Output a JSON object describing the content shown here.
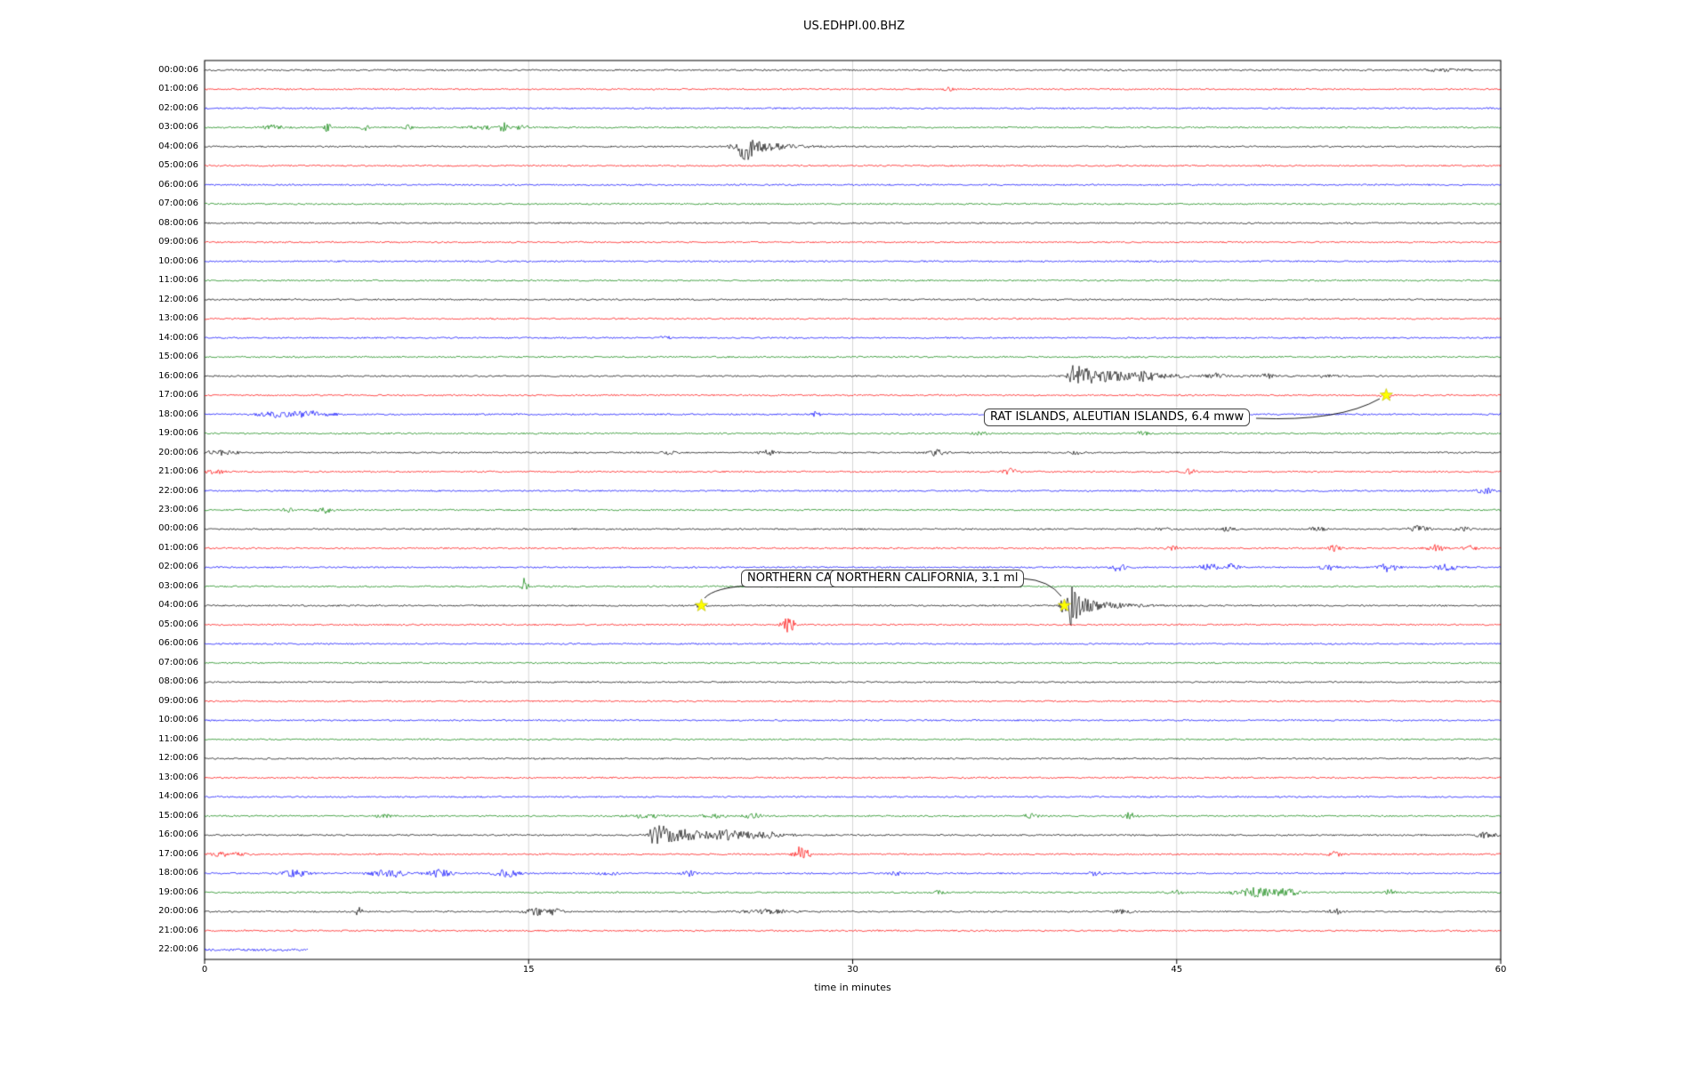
{
  "title": "US.EDHPI.00.BHZ",
  "chart_data": {
    "type": "line",
    "subtype": "seismogram-dayplot",
    "title": "US.EDHPI.00.BHZ",
    "xlabel": "time in minutes",
    "xlim": [
      0,
      60
    ],
    "xticks": [
      "0",
      "15",
      "30",
      "45",
      "60"
    ],
    "xtick_values": [
      0,
      15,
      30,
      45,
      60
    ],
    "grid": true,
    "minutes_per_row": 60,
    "trace_color_cycle": [
      "#000000",
      "#ff0000",
      "#0000ff",
      "#008000"
    ],
    "event_marker_color": "#ffff00",
    "rows": [
      {
        "label": "00:00:06",
        "color": "#000000",
        "events": [
          {
            "m": 57.5,
            "a": 1.2,
            "w": 1
          }
        ]
      },
      {
        "label": "01:00:06",
        "color": "#ff0000",
        "events": [
          {
            "m": 34.5,
            "a": 2,
            "w": 0.25
          }
        ]
      },
      {
        "label": "02:00:06",
        "color": "#0000ff",
        "events": []
      },
      {
        "label": "03:00:06",
        "color": "#008000",
        "events": [
          {
            "m": 3.2,
            "a": 2.5,
            "w": 0.5
          },
          {
            "m": 5.7,
            "a": 5,
            "w": 0.15
          },
          {
            "m": 7.4,
            "a": 4,
            "w": 0.15
          },
          {
            "m": 9.4,
            "a": 2.5,
            "w": 0.2
          },
          {
            "m": 12.8,
            "a": 2,
            "w": 0.6
          },
          {
            "m": 13.8,
            "a": 6,
            "w": 0.2
          },
          {
            "m": 14.7,
            "a": 3,
            "w": 0.3
          }
        ]
      },
      {
        "label": "04:00:06",
        "color": "#000000",
        "events": [
          {
            "m": 24.4,
            "a": 3,
            "w": 0.15
          },
          {
            "m": 24.9,
            "a": 14,
            "w": 0.2,
            "c": 1
          },
          {
            "m": 25.2,
            "a": 6,
            "w": 0.2
          }
        ]
      },
      {
        "label": "05:00:06",
        "color": "#ff0000",
        "events": []
      },
      {
        "label": "06:00:06",
        "color": "#0000ff",
        "events": []
      },
      {
        "label": "07:00:06",
        "color": "#008000",
        "events": []
      },
      {
        "label": "08:00:06",
        "color": "#000000",
        "events": []
      },
      {
        "label": "09:00:06",
        "color": "#ff0000",
        "events": []
      },
      {
        "label": "10:00:06",
        "color": "#0000ff",
        "events": []
      },
      {
        "label": "11:00:06",
        "color": "#008000",
        "events": []
      },
      {
        "label": "12:00:06",
        "color": "#000000",
        "events": []
      },
      {
        "label": "13:00:06",
        "color": "#ff0000",
        "events": []
      },
      {
        "label": "14:00:06",
        "color": "#0000ff",
        "events": [
          {
            "m": 21.3,
            "a": 2.5,
            "w": 0.2
          }
        ]
      },
      {
        "label": "15:00:06",
        "color": "#008000",
        "events": []
      },
      {
        "label": "16:00:06",
        "color": "#000000",
        "events": [
          {
            "m": 40.2,
            "a": 12,
            "w": 0.2,
            "c": 2.2
          },
          {
            "m": 43.5,
            "a": 3,
            "w": 0.5
          },
          {
            "m": 46.8,
            "a": 2.5,
            "w": 0.4
          },
          {
            "m": 49.2,
            "a": 2,
            "w": 0.3
          },
          {
            "m": 52,
            "a": 1.5,
            "w": 0.5
          }
        ]
      },
      {
        "label": "17:00:06",
        "color": "#ff0000",
        "events": [
          {
            "m": 54.7,
            "a": 2.5,
            "w": 0.3
          }
        ]
      },
      {
        "label": "18:00:06",
        "color": "#0000ff",
        "events": [
          {
            "m": 3.3,
            "a": 3,
            "w": 0.8
          },
          {
            "m": 5,
            "a": 3.5,
            "w": 0.9
          },
          {
            "m": 28.3,
            "a": 3,
            "w": 0.25
          },
          {
            "m": 47.6,
            "a": 2,
            "w": 0.3
          }
        ]
      },
      {
        "label": "19:00:06",
        "color": "#008000",
        "events": [
          {
            "m": 35.9,
            "a": 2.5,
            "w": 0.3
          },
          {
            "m": 43.4,
            "a": 2,
            "w": 0.3
          }
        ]
      },
      {
        "label": "20:00:06",
        "color": "#000000",
        "events": [
          {
            "m": 0.8,
            "a": 2.5,
            "w": 0.7
          },
          {
            "m": 21.5,
            "a": 2,
            "w": 0.3
          },
          {
            "m": 26.1,
            "a": 2.5,
            "w": 0.4
          },
          {
            "m": 33.9,
            "a": 3.5,
            "w": 0.4
          },
          {
            "m": 40.3,
            "a": 2,
            "w": 0.3
          }
        ]
      },
      {
        "label": "21:00:06",
        "color": "#ff0000",
        "events": [
          {
            "m": 0.5,
            "a": 2,
            "w": 0.5
          },
          {
            "m": 37.3,
            "a": 3.5,
            "w": 0.35
          },
          {
            "m": 45.6,
            "a": 2.5,
            "w": 0.3
          }
        ]
      },
      {
        "label": "22:00:06",
        "color": "#0000ff",
        "events": [
          {
            "m": 59.3,
            "a": 3.5,
            "w": 0.4
          }
        ]
      },
      {
        "label": "23:00:06",
        "color": "#008000",
        "events": [
          {
            "m": 3.8,
            "a": 3,
            "w": 0.3
          },
          {
            "m": 5.6,
            "a": 3.5,
            "w": 0.35
          }
        ]
      },
      {
        "label": "00:00:06",
        "color": "#000000",
        "events": [
          {
            "m": 44.5,
            "a": 1.5,
            "w": 0.4
          },
          {
            "m": 47.3,
            "a": 2,
            "w": 0.4
          },
          {
            "m": 51.5,
            "a": 2,
            "w": 0.4
          },
          {
            "m": 56.2,
            "a": 3,
            "w": 0.5
          },
          {
            "m": 58.3,
            "a": 2,
            "w": 0.4
          }
        ]
      },
      {
        "label": "01:00:06",
        "color": "#ff0000",
        "events": [
          {
            "m": 44.8,
            "a": 2,
            "w": 0.3
          },
          {
            "m": 52.3,
            "a": 3,
            "w": 0.3
          },
          {
            "m": 57,
            "a": 3.5,
            "w": 0.4
          },
          {
            "m": 58.6,
            "a": 2.5,
            "w": 0.3
          }
        ]
      },
      {
        "label": "02:00:06",
        "color": "#0000ff",
        "events": [
          {
            "m": 42.3,
            "a": 5,
            "w": 0.3
          },
          {
            "m": 46.5,
            "a": 4,
            "w": 0.4
          },
          {
            "m": 47.6,
            "a": 4,
            "w": 0.3
          },
          {
            "m": 52,
            "a": 3,
            "w": 0.4
          },
          {
            "m": 54.8,
            "a": 5,
            "w": 0.4
          },
          {
            "m": 57.5,
            "a": 4,
            "w": 0.5
          }
        ]
      },
      {
        "label": "03:00:06",
        "color": "#008000",
        "events": [
          {
            "m": 14.8,
            "a": 9,
            "w": 0.15
          }
        ]
      },
      {
        "label": "04:00:06",
        "color": "#000000",
        "events": [
          {
            "m": 23,
            "a": 2,
            "w": 0.3
          },
          {
            "m": 39.85,
            "a": 17,
            "w": 0.2,
            "c": 1.2
          },
          {
            "m": 40.15,
            "a": 8,
            "w": 0.2
          }
        ]
      },
      {
        "label": "05:00:06",
        "color": "#ff0000",
        "events": [
          {
            "m": 26.9,
            "a": 10,
            "w": 0.2
          },
          {
            "m": 27.2,
            "a": 6,
            "w": 0.15
          }
        ]
      },
      {
        "label": "06:00:06",
        "color": "#0000ff",
        "events": []
      },
      {
        "label": "07:00:06",
        "color": "#008000",
        "events": []
      },
      {
        "label": "08:00:06",
        "color": "#000000",
        "events": []
      },
      {
        "label": "09:00:06",
        "color": "#ff0000",
        "events": []
      },
      {
        "label": "10:00:06",
        "color": "#0000ff",
        "events": []
      },
      {
        "label": "11:00:06",
        "color": "#008000",
        "events": []
      },
      {
        "label": "12:00:06",
        "color": "#000000",
        "events": []
      },
      {
        "label": "13:00:06",
        "color": "#ff0000",
        "events": []
      },
      {
        "label": "14:00:06",
        "color": "#0000ff",
        "events": []
      },
      {
        "label": "15:00:06",
        "color": "#008000",
        "events": [
          {
            "m": 8.2,
            "a": 2,
            "w": 0.4
          },
          {
            "m": 20.5,
            "a": 2,
            "w": 0.8
          },
          {
            "m": 23.6,
            "a": 2.5,
            "w": 0.5
          },
          {
            "m": 25.4,
            "a": 2.5,
            "w": 0.4
          },
          {
            "m": 38.3,
            "a": 3,
            "w": 0.3
          },
          {
            "m": 42.8,
            "a": 3.5,
            "w": 0.3
          }
        ]
      },
      {
        "label": "16:00:06",
        "color": "#000000",
        "events": [
          {
            "m": 20.8,
            "a": 12,
            "w": 0.2,
            "c": 2
          },
          {
            "m": 24.2,
            "a": 3,
            "w": 0.6
          },
          {
            "m": 25.8,
            "a": 3,
            "w": 0.8
          },
          {
            "m": 59.3,
            "a": 3,
            "w": 0.5
          }
        ]
      },
      {
        "label": "17:00:06",
        "color": "#ff0000",
        "events": [
          {
            "m": 1,
            "a": 2,
            "w": 0.8
          },
          {
            "m": 27.5,
            "a": 8,
            "w": 0.25
          },
          {
            "m": 27.9,
            "a": 5,
            "w": 0.2
          },
          {
            "m": 52.3,
            "a": 3,
            "w": 0.3
          }
        ]
      },
      {
        "label": "18:00:06",
        "color": "#0000ff",
        "events": [
          {
            "m": 4.2,
            "a": 3.5,
            "w": 0.6
          },
          {
            "m": 8.5,
            "a": 4.5,
            "w": 0.8
          },
          {
            "m": 10.9,
            "a": 4,
            "w": 0.6
          },
          {
            "m": 14,
            "a": 4.5,
            "w": 0.5
          },
          {
            "m": 18.7,
            "a": 2.5,
            "w": 0.4
          },
          {
            "m": 22.4,
            "a": 3,
            "w": 0.3
          },
          {
            "m": 32,
            "a": 2,
            "w": 0.3
          },
          {
            "m": 41.2,
            "a": 2.5,
            "w": 0.3
          }
        ]
      },
      {
        "label": "19:00:06",
        "color": "#008000",
        "events": [
          {
            "m": 33.9,
            "a": 2,
            "w": 0.3
          },
          {
            "m": 44.9,
            "a": 3,
            "w": 0.3
          },
          {
            "m": 48.6,
            "a": 5,
            "w": 0.9
          },
          {
            "m": 50.1,
            "a": 4,
            "w": 0.5
          },
          {
            "m": 54.9,
            "a": 3.5,
            "w": 0.25
          }
        ]
      },
      {
        "label": "20:00:06",
        "color": "#000000",
        "events": [
          {
            "m": 7.1,
            "a": 4.5,
            "w": 0.2
          },
          {
            "m": 15.4,
            "a": 3.5,
            "w": 0.6
          },
          {
            "m": 16.2,
            "a": 3,
            "w": 0.3
          },
          {
            "m": 26,
            "a": 2,
            "w": 1.2
          },
          {
            "m": 42.5,
            "a": 2,
            "w": 0.4
          },
          {
            "m": 52.3,
            "a": 3.5,
            "w": 0.3
          }
        ]
      },
      {
        "label": "21:00:06",
        "color": "#ff0000",
        "events": []
      },
      {
        "label": "22:00:06",
        "color": "#0000ff",
        "end": 4.8,
        "n": 1.3,
        "events": []
      }
    ],
    "annotations": [
      {
        "label": "RAT ISLANDS, ALEUTIAN ISLANDS, 6.4 mww",
        "row": 17,
        "minute": 54.7
      },
      {
        "label": "NORTHERN CALIFORNIA, 3.1 ml",
        "row": 28,
        "minute": 23.0
      },
      {
        "label": "NORTHERN CALIFORNIA, 3.1 ml",
        "row": 28,
        "minute": 39.8
      }
    ]
  }
}
